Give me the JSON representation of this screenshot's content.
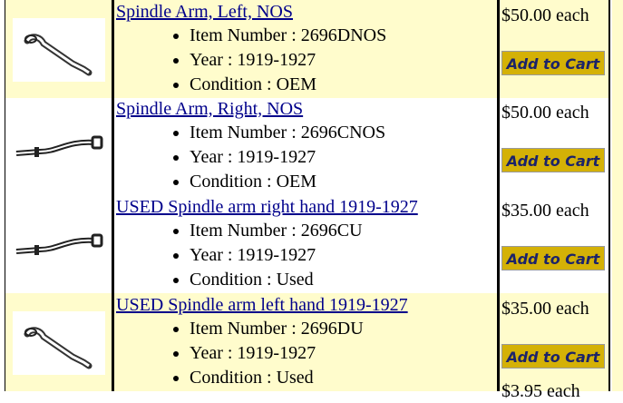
{
  "colors": {
    "row_alt": "#fffccc",
    "button_bg": "#d4b106",
    "button_text": "#1c2369",
    "link": "#00008b"
  },
  "products": [
    {
      "title": "Spindle Arm, Left, NOS",
      "image": "spindle-arm-left-icon",
      "item_number": "Item Number : 2696DNOS",
      "year": "Year : 1919-1927",
      "condition": "Condition : OEM",
      "price": "$50.00 each",
      "button": "Add to Cart"
    },
    {
      "title": "Spindle Arm, Right, NOS",
      "image": "spindle-arm-right-icon",
      "item_number": "Item Number : 2696CNOS",
      "year": "Year : 1919-1927",
      "condition": "Condition : OEM",
      "price": "$50.00 each",
      "button": "Add to Cart"
    },
    {
      "title": "USED Spindle arm right hand 1919-1927",
      "image": "spindle-arm-right-icon",
      "item_number": "Item Number : 2696CU",
      "year": "Year : 1919-1927",
      "condition": "Condition : Used",
      "price": "$35.00 each",
      "button": "Add to Cart"
    },
    {
      "title": "USED Spindle arm left hand 1919-1927",
      "image": "spindle-arm-left-icon",
      "item_number": "Item Number : 2696DU",
      "year": "Year : 1919-1927",
      "condition": "Condition : Used",
      "price": "$35.00 each",
      "button": "Add to Cart"
    }
  ],
  "next_price_partial": "$3.95 each"
}
